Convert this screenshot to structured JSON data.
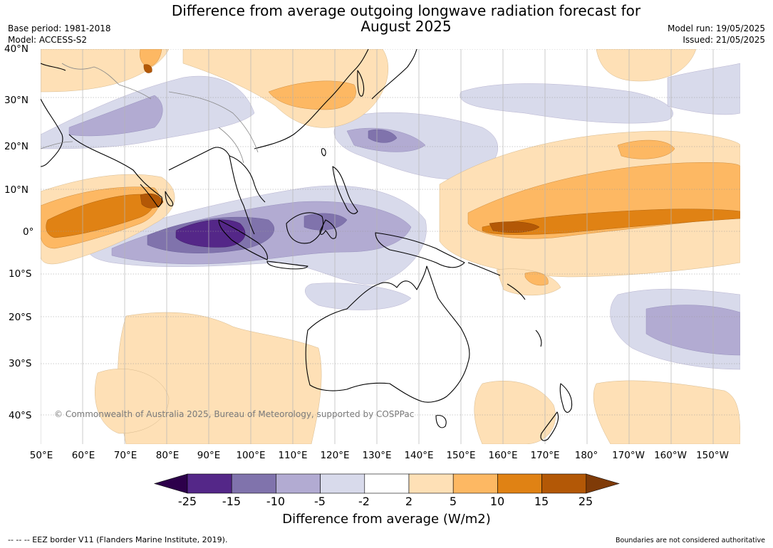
{
  "title_line1": "Difference from average outgoing longwave radiation forecast for",
  "title_line2": "August 2025",
  "meta_left": {
    "line1": "Base period: 1981-2018",
    "line2": "Model: ACCESS-S2"
  },
  "meta_right": {
    "line1": "Model run: 19/05/2025",
    "line2": "Issued: 21/05/2025"
  },
  "lat_labels": [
    "40°N",
    "30°N",
    "20°N",
    "10°N",
    "0°",
    "10°S",
    "20°S",
    "30°S",
    "40°S"
  ],
  "lon_labels": [
    "50°E",
    "60°E",
    "70°E",
    "80°E",
    "90°E",
    "100°E",
    "110°E",
    "120°E",
    "130°E",
    "140°E",
    "150°E",
    "160°E",
    "170°E",
    "180°",
    "170°W",
    "160°W",
    "150°W"
  ],
  "copyright": "© Commonwealth of Australia 2025, Bureau of Meteorology, supported by COSPPac",
  "colorbar": {
    "ticks": [
      "-25",
      "-15",
      "-10",
      "-5",
      "-2",
      "2",
      "5",
      "10",
      "15",
      "25"
    ],
    "colors": [
      "#2d004b",
      "#542788",
      "#8073ac",
      "#b2abd2",
      "#d8daeb",
      "#ffffff",
      "#fee0b6",
      "#fdb863",
      "#e08214",
      "#b35806",
      "#7f3b08"
    ],
    "title": "Difference from average (W/m2)"
  },
  "footer_left": "--  --  -- EEZ border V11 (Flanders Marine Institute, 2019).",
  "footer_right": "Boundaries are not considered authoritative"
}
